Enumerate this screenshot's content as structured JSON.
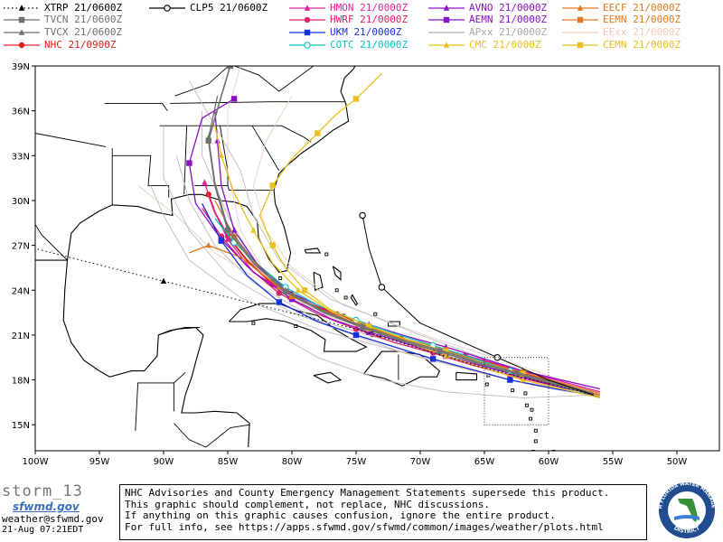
{
  "legend": [
    {
      "label": "XTRP 21/0600Z",
      "color": "#000000",
      "marker": "triangle",
      "dotted": true
    },
    {
      "label": "CLP5 21/0600Z",
      "color": "#000000",
      "marker": "circle-open"
    },
    {
      "label": "HMON 21/0000Z",
      "color": "#e0209a",
      "marker": "triangle"
    },
    {
      "label": "AVNO 21/0000Z",
      "color": "#8b10c8",
      "marker": "triangle"
    },
    {
      "label": "EECF 21/0000Z",
      "color": "#e07a20",
      "marker": "triangle"
    },
    {
      "label": "TVCN 21/0600Z",
      "color": "#707070",
      "marker": "square"
    },
    {
      "label": "HWRF 21/0000Z",
      "color": "#e0206a",
      "marker": "circle"
    },
    {
      "label": "AEMN 21/0000Z",
      "color": "#8b10c8",
      "marker": "square"
    },
    {
      "label": "EEMN 21/0000Z",
      "color": "#e07a20",
      "marker": "square"
    },
    {
      "label": "TVCX 21/0600Z",
      "color": "#707070",
      "marker": "triangle"
    },
    {
      "label": "UKM 21/0000Z",
      "color": "#1530e0",
      "marker": "square"
    },
    {
      "label": "APxx 21/0000Z",
      "color": "#b0b0b0",
      "marker": "none"
    },
    {
      "label": "EExx 21/0000Z",
      "color": "#f3c9b8",
      "marker": "none"
    },
    {
      "label": "NHC 21/0900Z",
      "color": "#e02020",
      "marker": "circle"
    },
    {
      "label": "COTC 21/0000Z",
      "color": "#10c0c0",
      "marker": "circle-open"
    },
    {
      "label": "CMC 21/0000Z",
      "color": "#e8c020",
      "marker": "triangle"
    },
    {
      "label": "CEMN 21/0000Z",
      "color": "#e8c020",
      "marker": "square"
    }
  ],
  "axes": {
    "lat_ticks": [
      "39N",
      "36N",
      "33N",
      "30N",
      "27N",
      "24N",
      "21N",
      "18N",
      "15N"
    ],
    "lon_ticks": [
      "100W",
      "95W",
      "90W",
      "85W",
      "80W",
      "75W",
      "70W",
      "65W",
      "60W",
      "55W",
      "50W"
    ]
  },
  "tracks": [
    {
      "model": "NHC",
      "color": "#e02020",
      "width": 2,
      "marker": "circle",
      "points": [
        [
          -56.5,
          17.0
        ],
        [
          -59.0,
          17.7
        ],
        [
          -61.5,
          18.3
        ],
        [
          -64.0,
          19.0
        ],
        [
          -66.5,
          19.6
        ],
        [
          -69.0,
          20.2
        ],
        [
          -71.5,
          20.8
        ],
        [
          -74.0,
          21.6
        ],
        [
          -76.5,
          22.4
        ],
        [
          -79.0,
          23.2
        ],
        [
          -81.5,
          24.4
        ],
        [
          -83.5,
          26.0
        ],
        [
          -85.0,
          27.6
        ],
        [
          -86.0,
          29.2
        ],
        [
          -86.5,
          30.4
        ]
      ]
    },
    {
      "model": "HMON",
      "color": "#e0209a",
      "width": 1.3,
      "marker": "triangle",
      "points": [
        [
          -56.0,
          17.2
        ],
        [
          -59.0,
          17.9
        ],
        [
          -62.0,
          18.6
        ],
        [
          -65.0,
          19.3
        ],
        [
          -68.0,
          20.0
        ],
        [
          -71.0,
          20.6
        ],
        [
          -74.0,
          21.4
        ],
        [
          -77.0,
          22.4
        ],
        [
          -80.0,
          23.6
        ],
        [
          -83.0,
          25.2
        ],
        [
          -85.0,
          27.4
        ],
        [
          -86.2,
          29.6
        ],
        [
          -86.8,
          31.2
        ]
      ]
    },
    {
      "model": "HWRF",
      "color": "#e0206a",
      "width": 1.3,
      "marker": "circle",
      "points": [
        [
          -56.0,
          17.0
        ],
        [
          -59.5,
          17.6
        ],
        [
          -63.0,
          18.3
        ],
        [
          -66.0,
          19.0
        ],
        [
          -69.0,
          19.8
        ],
        [
          -72.0,
          20.5
        ],
        [
          -75.0,
          21.4
        ],
        [
          -78.0,
          22.4
        ],
        [
          -81.0,
          23.8
        ],
        [
          -83.5,
          25.6
        ],
        [
          -85.5,
          27.6
        ],
        [
          -87.0,
          29.5
        ]
      ]
    },
    {
      "model": "AVNO",
      "color": "#8b10c8",
      "width": 1.3,
      "marker": "triangle",
      "points": [
        [
          -56.0,
          17.4
        ],
        [
          -59.0,
          18.0
        ],
        [
          -62.0,
          18.6
        ],
        [
          -65.0,
          19.4
        ],
        [
          -68.0,
          20.2
        ],
        [
          -71.0,
          20.9
        ],
        [
          -74.0,
          21.7
        ],
        [
          -77.0,
          22.6
        ],
        [
          -80.0,
          23.8
        ],
        [
          -82.5,
          25.5
        ],
        [
          -84.5,
          28.0
        ],
        [
          -85.5,
          31.0
        ],
        [
          -85.8,
          34.0
        ],
        [
          -86.0,
          36.0
        ]
      ]
    },
    {
      "model": "AEMN",
      "color": "#8b10c8",
      "width": 1.3,
      "marker": "square",
      "points": [
        [
          -56.0,
          17.0
        ],
        [
          -59.0,
          17.5
        ],
        [
          -62.0,
          18.2
        ],
        [
          -65.0,
          18.9
        ],
        [
          -68.0,
          19.6
        ],
        [
          -71.0,
          20.4
        ],
        [
          -74.0,
          21.2
        ],
        [
          -77.0,
          22.1
        ],
        [
          -80.0,
          23.4
        ],
        [
          -83.0,
          25.2
        ],
        [
          -85.5,
          27.4
        ],
        [
          -87.5,
          29.8
        ],
        [
          -88.0,
          32.5
        ],
        [
          -87.0,
          35.5
        ],
        [
          -84.5,
          36.8
        ]
      ]
    },
    {
      "model": "EECF",
      "color": "#e07a20",
      "width": 1.3,
      "marker": "triangle",
      "points": [
        [
          -56.0,
          17.0
        ],
        [
          -59.5,
          17.8
        ],
        [
          -63.0,
          18.6
        ],
        [
          -66.0,
          19.5
        ],
        [
          -69.0,
          20.2
        ],
        [
          -72.0,
          20.9
        ],
        [
          -75.0,
          21.8
        ],
        [
          -78.0,
          22.8
        ],
        [
          -81.0,
          24.2
        ],
        [
          -84.0,
          26.2
        ],
        [
          -86.5,
          27.0
        ],
        [
          -88.0,
          26.5
        ]
      ]
    },
    {
      "model": "EEMN",
      "color": "#e07a20",
      "width": 1.3,
      "marker": "square",
      "points": [
        [
          -56.0,
          17.1
        ],
        [
          -59.0,
          17.8
        ],
        [
          -62.0,
          18.5
        ],
        [
          -65.0,
          19.2
        ],
        [
          -68.0,
          20.0
        ],
        [
          -71.0,
          20.7
        ],
        [
          -74.0,
          21.5
        ],
        [
          -77.0,
          22.4
        ],
        [
          -80.0,
          23.6
        ],
        [
          -82.5,
          25.4
        ],
        [
          -84.5,
          27.6
        ],
        [
          -86.0,
          30.0
        ]
      ]
    },
    {
      "model": "UKM",
      "color": "#1530e0",
      "width": 1.3,
      "marker": "square",
      "points": [
        [
          -56.0,
          16.9
        ],
        [
          -59.5,
          17.4
        ],
        [
          -63.0,
          18.0
        ],
        [
          -66.0,
          18.7
        ],
        [
          -69.0,
          19.4
        ],
        [
          -72.0,
          20.2
        ],
        [
          -75.0,
          21.0
        ],
        [
          -78.0,
          21.9
        ],
        [
          -81.0,
          23.2
        ],
        [
          -83.5,
          25.0
        ],
        [
          -85.5,
          27.3
        ],
        [
          -87.0,
          29.8
        ]
      ]
    },
    {
      "model": "COTC",
      "color": "#10c0c0",
      "width": 1.3,
      "marker": "circle-open",
      "points": [
        [
          -56.5,
          17.0
        ],
        [
          -60.0,
          17.8
        ],
        [
          -63.0,
          18.6
        ],
        [
          -66.0,
          19.5
        ],
        [
          -69.0,
          20.3
        ],
        [
          -72.0,
          21.1
        ],
        [
          -75.0,
          22.0
        ],
        [
          -78.0,
          23.0
        ],
        [
          -80.5,
          24.2
        ],
        [
          -82.5,
          25.6
        ],
        [
          -84.5,
          27.2
        ],
        [
          -86.0,
          28.8
        ]
      ]
    },
    {
      "model": "CMC",
      "color": "#e8c020",
      "width": 1.3,
      "marker": "triangle",
      "points": [
        [
          -56.0,
          16.8
        ],
        [
          -59.0,
          17.4
        ],
        [
          -62.0,
          18.0
        ],
        [
          -65.0,
          18.8
        ],
        [
          -68.0,
          19.6
        ],
        [
          -71.0,
          20.5
        ],
        [
          -74.0,
          21.4
        ],
        [
          -77.0,
          22.6
        ],
        [
          -79.5,
          24.0
        ],
        [
          -81.5,
          25.8
        ],
        [
          -83.0,
          28.0
        ],
        [
          -84.5,
          30.5
        ],
        [
          -85.5,
          33.0
        ],
        [
          -86.0,
          35.0
        ]
      ]
    },
    {
      "model": "CEMN",
      "color": "#e8c020",
      "width": 1.3,
      "marker": "square",
      "points": [
        [
          -56.0,
          16.9
        ],
        [
          -59.0,
          17.6
        ],
        [
          -62.0,
          18.4
        ],
        [
          -65.0,
          19.1
        ],
        [
          -68.0,
          19.9
        ],
        [
          -71.0,
          20.7
        ],
        [
          -74.0,
          21.6
        ],
        [
          -77.0,
          22.7
        ],
        [
          -79.0,
          24.0
        ],
        [
          -80.5,
          25.5
        ],
        [
          -81.5,
          27.0
        ],
        [
          -82.5,
          29.0
        ],
        [
          -81.5,
          31.0
        ],
        [
          -80.0,
          32.8
        ],
        [
          -78.0,
          34.5
        ],
        [
          -76.5,
          35.8
        ],
        [
          -75.0,
          36.8
        ],
        [
          -73.0,
          38.5
        ]
      ]
    },
    {
      "model": "TVCN",
      "color": "#707070",
      "width": 1.6,
      "marker": "square",
      "points": [
        [
          -56.5,
          17.0
        ],
        [
          -59.5,
          17.7
        ],
        [
          -62.5,
          18.4
        ],
        [
          -65.5,
          19.1
        ],
        [
          -68.5,
          19.9
        ],
        [
          -71.5,
          20.6
        ],
        [
          -74.5,
          21.5
        ],
        [
          -77.5,
          22.5
        ],
        [
          -80.5,
          23.9
        ],
        [
          -83.0,
          25.8
        ],
        [
          -85.0,
          28.0
        ],
        [
          -86.0,
          31.0
        ],
        [
          -86.5,
          34.0
        ],
        [
          -85.5,
          37.0
        ],
        [
          -84.8,
          39.0
        ]
      ]
    },
    {
      "model": "TVCX",
      "color": "#707070",
      "width": 1.3,
      "marker": "triangle",
      "points": [
        [
          -56.5,
          17.1
        ],
        [
          -59.5,
          17.8
        ],
        [
          -62.5,
          18.5
        ],
        [
          -65.5,
          19.2
        ],
        [
          -68.5,
          20.0
        ],
        [
          -71.5,
          20.7
        ],
        [
          -74.5,
          21.6
        ],
        [
          -77.5,
          22.6
        ],
        [
          -80.5,
          24.0
        ],
        [
          -83.0,
          26.0
        ],
        [
          -85.0,
          28.2
        ],
        [
          -86.0,
          31.2
        ],
        [
          -86.5,
          34.2
        ],
        [
          -85.8,
          37.0
        ]
      ]
    },
    {
      "model": "CLP5",
      "color": "#000000",
      "width": 1,
      "marker": "circle-open",
      "points": [
        [
          -56.5,
          17.0
        ],
        [
          -60.0,
          18.0
        ],
        [
          -64.0,
          19.5
        ],
        [
          -70.0,
          21.8
        ],
        [
          -73.0,
          24.2
        ],
        [
          -74.0,
          26.8
        ],
        [
          -74.5,
          29.0
        ]
      ]
    },
    {
      "model": "XTRP",
      "color": "#000000",
      "width": 1,
      "marker": "triangle",
      "dotted": true,
      "points": [
        [
          -56.5,
          17.0
        ],
        [
          -65.0,
          18.8
        ],
        [
          -75.0,
          21.4
        ],
        [
          -90.0,
          24.6
        ],
        [
          -101.0,
          27.0
        ]
      ]
    }
  ],
  "ensemble_tracks": [
    [
      [
        -56,
        17
      ],
      [
        -62,
        18.5
      ],
      [
        -70,
        20.3
      ],
      [
        -78,
        22.5
      ],
      [
        -82,
        25
      ],
      [
        -84,
        28
      ],
      [
        -85,
        32
      ],
      [
        -85,
        36
      ],
      [
        -84,
        39
      ]
    ],
    [
      [
        -56,
        17
      ],
      [
        -62,
        18.2
      ],
      [
        -70,
        20
      ],
      [
        -78,
        22
      ],
      [
        -83,
        24.5
      ],
      [
        -86,
        27
      ],
      [
        -88,
        30
      ],
      [
        -89,
        33
      ]
    ],
    [
      [
        -56,
        17
      ],
      [
        -63,
        18.4
      ],
      [
        -71,
        20.4
      ],
      [
        -79,
        23
      ],
      [
        -83,
        26
      ],
      [
        -85,
        29
      ],
      [
        -87,
        33
      ],
      [
        -87,
        36
      ]
    ],
    [
      [
        -56,
        17
      ],
      [
        -61,
        18.6
      ],
      [
        -69,
        20.8
      ],
      [
        -76,
        23
      ],
      [
        -80,
        25.5
      ],
      [
        -82,
        28
      ],
      [
        -83,
        31
      ],
      [
        -82,
        34
      ],
      [
        -80,
        37
      ]
    ],
    [
      [
        -56,
        17
      ],
      [
        -62,
        17.8
      ],
      [
        -70,
        19.5
      ],
      [
        -78,
        21.4
      ],
      [
        -84,
        23.5
      ],
      [
        -88,
        26
      ],
      [
        -90,
        29
      ],
      [
        -91,
        31
      ]
    ],
    [
      [
        -56,
        17
      ],
      [
        -63,
        18.8
      ],
      [
        -70,
        21
      ],
      [
        -77,
        23.4
      ],
      [
        -81,
        26
      ],
      [
        -83,
        29
      ],
      [
        -84,
        32
      ],
      [
        -86,
        35
      ],
      [
        -88,
        38
      ]
    ],
    [
      [
        -56,
        17
      ],
      [
        -62,
        18.4
      ],
      [
        -70,
        20.2
      ],
      [
        -77,
        22.2
      ],
      [
        -82,
        24.4
      ],
      [
        -86,
        26.5
      ],
      [
        -89,
        29
      ],
      [
        -92,
        31
      ]
    ],
    [
      [
        -56,
        17
      ],
      [
        -63,
        18
      ],
      [
        -72,
        20
      ],
      [
        -80,
        22.5
      ],
      [
        -85,
        25
      ],
      [
        -88,
        28
      ],
      [
        -90,
        31.5
      ],
      [
        -90,
        35
      ]
    ],
    [
      [
        -56,
        17
      ],
      [
        -62,
        16.8
      ],
      [
        -68,
        17.2
      ],
      [
        -73,
        18
      ],
      [
        -78,
        19.5
      ],
      [
        -81,
        21
      ]
    ],
    [
      [
        -56,
        17
      ],
      [
        -61,
        17.6
      ],
      [
        -66,
        18.6
      ],
      [
        -70,
        19.5
      ],
      [
        -74,
        20.6
      ]
    ]
  ],
  "inset_box": {
    "lon_min": -65.0,
    "lon_max": -60.0,
    "lat_min": 15.0,
    "lat_max": 19.5
  },
  "footer": {
    "storm_name": "storm_13",
    "site_logo": "sfwmd.gov",
    "email": "weather@sfwmd.gov",
    "timestamp": "21-Aug 07:21EDT",
    "disclaimer_lines": [
      "NHC Advisories and County Emergency Management Statements supersede this product.",
      "This graphic should complement, not replace, NHC discussions.",
      "If anything on this graphic causes confusion, ignore the entire product.",
      "For full info, see  https://apps.sfwmd.gov/sfwmd/common/images/weather/plots.html"
    ],
    "seal_text_top": "SOUTH FLORIDA WATER MANAGEMENT",
    "seal_text_bottom": "DISTRICT"
  }
}
